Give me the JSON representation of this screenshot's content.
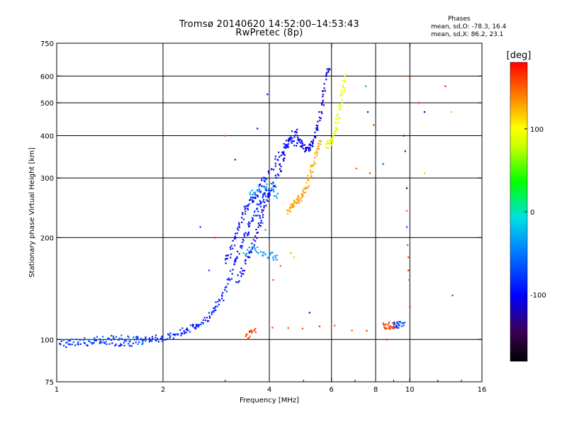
{
  "header": {
    "title_line1": "Tromsø 20140620 14:52:00–14:53:43",
    "title_line2": "RwPretec (8p)",
    "stats_heading": "Phases",
    "stats_o": "mean, sd,O: -78.3, 16.4",
    "stats_x": "mean, sd,X:  86.2, 23.1"
  },
  "chart_data": {
    "type": "scatter",
    "title": "Tromsø 20140620 14:52:00–14:53:43",
    "subtitle": "RwPretec (8p)",
    "xlabel": "Frequency [MHz]",
    "ylabel": "Stationary phase Virtual Height [km]",
    "xscale": "log",
    "yscale": "log",
    "xlim": [
      1,
      16
    ],
    "ylim": [
      75,
      750
    ],
    "x_ticks": [
      1,
      2,
      4,
      6,
      8,
      10,
      16
    ],
    "x_tick_labels": [
      "1",
      "2",
      "4",
      "6",
      "8",
      "10",
      "16"
    ],
    "y_ticks": [
      75,
      100,
      200,
      300,
      400,
      500,
      600,
      750
    ],
    "y_tick_labels": [
      "75",
      "100",
      "200",
      "300",
      "400",
      "500",
      "600",
      "750"
    ],
    "grid": true,
    "colorbar": {
      "label": "[deg]",
      "min": -180,
      "max": 180,
      "ticks": [
        -100,
        0,
        100
      ],
      "tick_labels": [
        "-100",
        "0",
        "100"
      ]
    },
    "traces": [
      {
        "name": "",
        "phase": -85,
        "points": [
          [
            1.02,
            97
          ],
          [
            1.1,
            97
          ],
          [
            1.2,
            98
          ],
          [
            1.3,
            98
          ],
          [
            1.4,
            99
          ],
          [
            1.5,
            98
          ],
          [
            1.6,
            98
          ],
          [
            1.7,
            98
          ],
          [
            1.8,
            100
          ],
          [
            1.9,
            101
          ],
          [
            2.0,
            101
          ],
          [
            2.1,
            102
          ],
          [
            2.2,
            104
          ],
          [
            2.3,
            106
          ],
          [
            2.4,
            108
          ],
          [
            2.5,
            110
          ],
          [
            2.6,
            113
          ],
          [
            2.7,
            117
          ],
          [
            2.8,
            122
          ],
          [
            2.9,
            130
          ],
          [
            3.0,
            140
          ],
          [
            3.1,
            155
          ],
          [
            3.2,
            170
          ],
          [
            3.3,
            185
          ],
          [
            3.4,
            200
          ],
          [
            3.5,
            215
          ],
          [
            3.6,
            230
          ],
          [
            3.7,
            245
          ],
          [
            3.8,
            258
          ],
          [
            3.9,
            268
          ],
          [
            4.0,
            275
          ]
        ]
      },
      {
        "name": "",
        "phase": -60,
        "points": [
          [
            1.05,
            99
          ],
          [
            1.2,
            100
          ],
          [
            1.35,
            100
          ],
          [
            1.5,
            101
          ],
          [
            1.65,
            100
          ],
          [
            1.75,
            99
          ]
        ]
      },
      {
        "name": "",
        "phase": -105,
        "points": [
          [
            3.25,
            150
          ],
          [
            3.35,
            160
          ],
          [
            3.5,
            175
          ],
          [
            3.6,
            190
          ],
          [
            3.7,
            210
          ],
          [
            3.8,
            230
          ],
          [
            3.9,
            250
          ],
          [
            4.0,
            270
          ],
          [
            4.15,
            290
          ],
          [
            4.3,
            320
          ],
          [
            4.4,
            350
          ],
          [
            4.5,
            380
          ],
          [
            4.6,
            400
          ],
          [
            4.75,
            410
          ],
          [
            4.9,
            385
          ],
          [
            5.0,
            370
          ],
          [
            5.1,
            365
          ],
          [
            5.2,
            370
          ],
          [
            5.3,
            380
          ],
          [
            5.4,
            400
          ],
          [
            5.5,
            430
          ],
          [
            5.6,
            480
          ],
          [
            5.7,
            530
          ],
          [
            5.8,
            600
          ],
          [
            5.9,
            630
          ]
        ]
      },
      {
        "name": "",
        "phase": -95,
        "points": [
          [
            3.0,
            170
          ],
          [
            3.1,
            180
          ],
          [
            3.2,
            200
          ],
          [
            3.3,
            220
          ],
          [
            3.4,
            240
          ],
          [
            3.5,
            250
          ],
          [
            3.6,
            260
          ],
          [
            3.7,
            270
          ],
          [
            3.8,
            290
          ],
          [
            4.0,
            310
          ],
          [
            4.2,
            340
          ],
          [
            4.4,
            370
          ],
          [
            4.6,
            390
          ],
          [
            4.8,
            380
          ]
        ]
      },
      {
        "name": "",
        "phase": -40,
        "points": [
          [
            3.4,
            180
          ],
          [
            3.6,
            185
          ],
          [
            3.8,
            182
          ],
          [
            4.0,
            178
          ],
          [
            4.2,
            175
          ],
          [
            3.5,
            270
          ],
          [
            3.7,
            275
          ],
          [
            3.9,
            280
          ],
          [
            4.1,
            285
          ],
          [
            4.2,
            262
          ]
        ]
      },
      {
        "name": "",
        "phase": 130,
        "points": [
          [
            4.5,
            240
          ],
          [
            4.6,
            245
          ],
          [
            4.7,
            250
          ],
          [
            4.8,
            255
          ],
          [
            4.9,
            262
          ],
          [
            5.0,
            270
          ],
          [
            5.1,
            285
          ],
          [
            5.2,
            300
          ],
          [
            5.3,
            320
          ],
          [
            5.4,
            345
          ],
          [
            5.5,
            370
          ],
          [
            5.6,
            385
          ]
        ]
      },
      {
        "name": "",
        "phase": 90,
        "points": [
          [
            5.8,
            370
          ],
          [
            5.9,
            380
          ],
          [
            6.0,
            385
          ],
          [
            6.1,
            400
          ],
          [
            6.2,
            430
          ],
          [
            6.3,
            470
          ],
          [
            6.4,
            520
          ],
          [
            6.5,
            560
          ],
          [
            6.55,
            600
          ]
        ]
      },
      {
        "name": "",
        "phase": 160,
        "points": [
          [
            3.45,
            102
          ],
          [
            3.55,
            104
          ],
          [
            3.65,
            106
          ],
          [
            8.4,
            109
          ],
          [
            8.6,
            110
          ],
          [
            8.8,
            110
          ],
          [
            9.0,
            110
          ],
          [
            9.2,
            110
          ]
        ]
      },
      {
        "name": "",
        "phase": -70,
        "points": [
          [
            9.0,
            110
          ],
          [
            9.2,
            110
          ],
          [
            9.4,
            111
          ],
          [
            9.6,
            110
          ]
        ]
      }
    ],
    "scattered_points": [
      {
        "x": 1.78,
        "y": 99,
        "phase": -20
      },
      {
        "x": 2.55,
        "y": 215,
        "phase": -80
      },
      {
        "x": 2.7,
        "y": 160,
        "phase": -70
      },
      {
        "x": 2.8,
        "y": 200,
        "phase": 170
      },
      {
        "x": 3.0,
        "y": 400,
        "phase": 160
      },
      {
        "x": 3.2,
        "y": 340,
        "phase": -90
      },
      {
        "x": 3.7,
        "y": 420,
        "phase": -110
      },
      {
        "x": 3.95,
        "y": 530,
        "phase": -100
      },
      {
        "x": 4.1,
        "y": 150,
        "phase": 160
      },
      {
        "x": 4.3,
        "y": 165,
        "phase": 150
      },
      {
        "x": 4.6,
        "y": 180,
        "phase": 130
      },
      {
        "x": 4.7,
        "y": 175,
        "phase": 120
      },
      {
        "x": 5.2,
        "y": 120,
        "phase": -100
      },
      {
        "x": 7.05,
        "y": 320,
        "phase": 150
      },
      {
        "x": 7.5,
        "y": 560,
        "phase": -30
      },
      {
        "x": 7.6,
        "y": 470,
        "phase": -120
      },
      {
        "x": 7.7,
        "y": 310,
        "phase": 160
      },
      {
        "x": 7.9,
        "y": 430,
        "phase": 165
      },
      {
        "x": 8.4,
        "y": 330,
        "phase": -70
      },
      {
        "x": 8.6,
        "y": 100,
        "phase": 170
      },
      {
        "x": 9.6,
        "y": 400,
        "phase": -140
      },
      {
        "x": 9.7,
        "y": 360,
        "phase": -90
      },
      {
        "x": 9.8,
        "y": 280,
        "phase": -150
      },
      {
        "x": 9.8,
        "y": 240,
        "phase": 150
      },
      {
        "x": 9.8,
        "y": 215,
        "phase": -70
      },
      {
        "x": 9.85,
        "y": 190,
        "phase": 160
      },
      {
        "x": 9.9,
        "y": 175,
        "phase": 165
      },
      {
        "x": 9.9,
        "y": 160,
        "phase": 175
      },
      {
        "x": 9.95,
        "y": 150,
        "phase": -30
      },
      {
        "x": 10.0,
        "y": 125,
        "phase": 170
      },
      {
        "x": 10.0,
        "y": 590,
        "phase": 160
      },
      {
        "x": 10.6,
        "y": 500,
        "phase": 165
      },
      {
        "x": 11.0,
        "y": 470,
        "phase": -120
      },
      {
        "x": 11.0,
        "y": 310,
        "phase": 120
      },
      {
        "x": 12.6,
        "y": 560,
        "phase": 175
      },
      {
        "x": 13.1,
        "y": 470,
        "phase": 120
      },
      {
        "x": 13.2,
        "y": 135,
        "phase": -60
      }
    ]
  }
}
